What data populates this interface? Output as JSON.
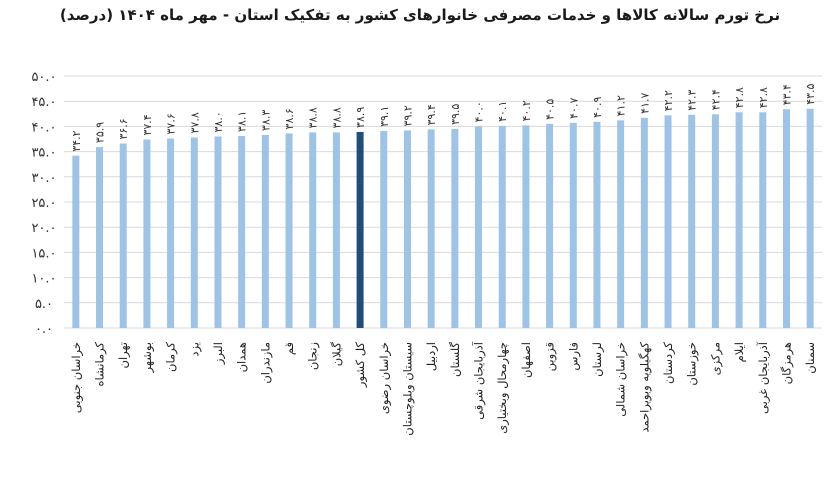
{
  "chart_data": {
    "type": "bar",
    "title": "نرخ تورم سالانه کالاها و خدمات مصرفی خانوارهای کشور به تفکیک استان - مهر ماه ۱۴۰۴ (درصد)",
    "xlabel": "",
    "ylabel": "",
    "ylim": [
      0,
      50
    ],
    "yticks": [
      0,
      5,
      10,
      15,
      20,
      25,
      30,
      35,
      40,
      45,
      50
    ],
    "ytick_labels": [
      "۰.۰",
      "۵.۰",
      "۱۰.۰",
      "۱۵.۰",
      "۲۰.۰",
      "۲۵.۰",
      "۳۰.۰",
      "۳۵.۰",
      "۴۰.۰",
      "۴۵.۰",
      "۵۰.۰"
    ],
    "grid": true,
    "categories": [
      "خراسان جنوبی",
      "کرمانشاه",
      "تهران",
      "بوشهر",
      "کرمان",
      "یزد",
      "البرز",
      "همدان",
      "مازندران",
      "قم",
      "زنجان",
      "گیلان",
      "کل کشور",
      "خراسان رضوی",
      "سیستان وبلوچستان",
      "اردبیل",
      "گلستان",
      "آذربایجان شرقی",
      "چهارمحال وبختیاری",
      "اصفهان",
      "قزوین",
      "فارس",
      "لرستان",
      "خراسان شمالی",
      "کهگیلویه وبویراحمد",
      "کردستان",
      "خوزستان",
      "مرکزی",
      "ایلام",
      "آذربایجان غربی",
      "هرمزگان",
      "سمنان"
    ],
    "values": [
      34.2,
      35.9,
      36.6,
      37.4,
      37.6,
      37.8,
      38.0,
      38.1,
      38.3,
      38.6,
      38.8,
      38.8,
      38.9,
      39.1,
      39.2,
      39.4,
      39.5,
      40.0,
      40.1,
      40.2,
      40.5,
      40.7,
      40.9,
      41.2,
      41.7,
      42.2,
      42.3,
      42.4,
      42.8,
      42.8,
      43.4,
      43.5
    ],
    "value_labels": [
      "۳۴.۲",
      "۳۵.۹",
      "۳۶.۶",
      "۳۷.۴",
      "۳۷.۶",
      "۳۷.۸",
      "۳۸.۰",
      "۳۸.۱",
      "۳۸.۳",
      "۳۸.۶",
      "۳۸.۸",
      "۳۸.۸",
      "۳۸.۹",
      "۳۹.۱",
      "۳۹.۲",
      "۳۹.۴",
      "۳۹.۵",
      "۴۰.۰",
      "۴۰.۱",
      "۴۰.۲",
      "۴۰.۵",
      "۴۰.۷",
      "۴۰.۹",
      "۴۱.۲",
      "۴۱.۷",
      "۴۲.۲",
      "۴۲.۳",
      "۴۲.۴",
      "۴۲.۸",
      "۴۲.۸",
      "۴۳.۴",
      "۴۳.۵"
    ],
    "highlight_category": "کل کشور",
    "colors": {
      "bar": "#9dc3e6",
      "highlight": "#1f4e79"
    }
  }
}
